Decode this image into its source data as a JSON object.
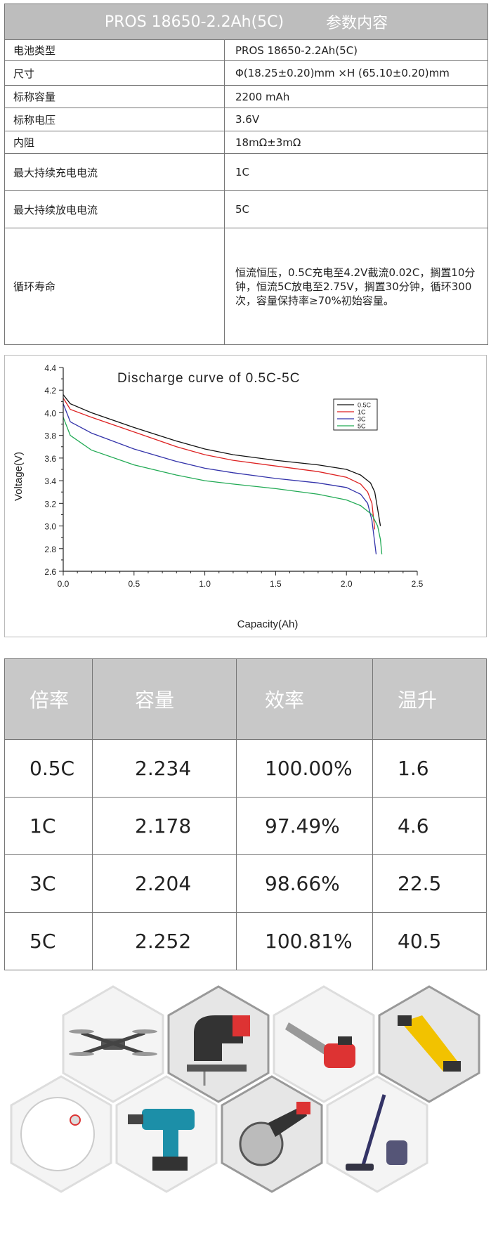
{
  "spec": {
    "title_model": "PROS 18650-2.2Ah(5C)",
    "title_label": "参数内容",
    "rows": [
      {
        "k": "电池类型",
        "v": "PROS 18650-2.2Ah(5C)"
      },
      {
        "k": "尺寸",
        "v": "Φ(18.25±0.20)mm ×H (65.10±0.20)mm"
      },
      {
        "k": "标称容量",
        "v": "2200 mAh"
      },
      {
        "k": "标称电压",
        "v": "3.6V"
      },
      {
        "k": "内阻",
        "v": "18mΩ±3mΩ"
      },
      {
        "k": "最大持续充电电流",
        "v": "1C"
      },
      {
        "k": "最大持续放电电流",
        "v": "5C"
      },
      {
        "k": "循环寿命",
        "v": "恒流恒压，0.5C充电至4.2V截流0.02C，搁置10分钟，恒流5C放电至2.75V，搁置30分钟，循环300次，容量保持率≥70%初始容量。"
      }
    ]
  },
  "chart_data": {
    "type": "line",
    "title": "Discharge curve of 0.5C-5C",
    "xlabel": "Capacity(Ah)",
    "ylabel": "Voltage(V)",
    "xlim": [
      0,
      2.5
    ],
    "ylim": [
      2.6,
      4.4
    ],
    "xticks": [
      "0.0",
      "0.5",
      "1.0",
      "1.5",
      "2.0",
      "2.5"
    ],
    "yticks": [
      "2.6",
      "2.8",
      "3.0",
      "3.2",
      "3.4",
      "3.6",
      "3.8",
      "4.0",
      "4.2",
      "4.4"
    ],
    "legend": "top-right",
    "series": [
      {
        "name": "0.5C",
        "color": "#111111",
        "x": [
          0,
          0.05,
          0.2,
          0.5,
          0.8,
          1.0,
          1.2,
          1.5,
          1.8,
          2.0,
          2.1,
          2.17,
          2.2,
          2.22,
          2.24
        ],
        "y": [
          4.16,
          4.08,
          4.0,
          3.87,
          3.75,
          3.68,
          3.63,
          3.58,
          3.54,
          3.5,
          3.45,
          3.38,
          3.3,
          3.15,
          3.0
        ]
      },
      {
        "name": "1C",
        "color": "#dd2222",
        "x": [
          0,
          0.05,
          0.2,
          0.5,
          0.8,
          1.0,
          1.2,
          1.5,
          1.8,
          2.0,
          2.1,
          2.15,
          2.18,
          2.2
        ],
        "y": [
          4.13,
          4.03,
          3.96,
          3.83,
          3.7,
          3.63,
          3.58,
          3.53,
          3.48,
          3.43,
          3.37,
          3.3,
          3.2,
          2.97
        ]
      },
      {
        "name": "3C",
        "color": "#3333aa",
        "x": [
          0,
          0.05,
          0.2,
          0.5,
          0.8,
          1.0,
          1.2,
          1.5,
          1.8,
          2.0,
          2.1,
          2.15,
          2.18,
          2.2,
          2.21
        ],
        "y": [
          4.08,
          3.92,
          3.82,
          3.68,
          3.57,
          3.51,
          3.47,
          3.42,
          3.38,
          3.34,
          3.28,
          3.2,
          3.05,
          2.85,
          2.75
        ]
      },
      {
        "name": "5C",
        "color": "#22aa55",
        "x": [
          0,
          0.05,
          0.2,
          0.5,
          0.8,
          1.0,
          1.2,
          1.5,
          1.8,
          2.0,
          2.1,
          2.18,
          2.22,
          2.24,
          2.25
        ],
        "y": [
          3.96,
          3.8,
          3.67,
          3.54,
          3.45,
          3.4,
          3.37,
          3.33,
          3.28,
          3.23,
          3.18,
          3.1,
          3.0,
          2.88,
          2.75
        ]
      }
    ]
  },
  "rate_table": {
    "headers": [
      "倍率",
      "容量",
      "效率",
      "温升"
    ],
    "rows": [
      [
        "0.5C",
        "2.234",
        "100.00%",
        "1.6"
      ],
      [
        "1C",
        "2.178",
        "97.49%",
        "4.6"
      ],
      [
        "3C",
        "2.204",
        "98.66%",
        "22.5"
      ],
      [
        "5C",
        "2.252",
        "100.81%",
        "40.5"
      ]
    ]
  },
  "applications": [
    {
      "icon": "drone-icon"
    },
    {
      "icon": "jigsaw-icon"
    },
    {
      "icon": "chainsaw-icon"
    },
    {
      "icon": "nibbler-tool-icon"
    },
    {
      "icon": "robot-vacuum-icon"
    },
    {
      "icon": "cordless-drill-icon"
    },
    {
      "icon": "circular-saw-icon"
    },
    {
      "icon": "stick-vacuum-icon"
    }
  ]
}
